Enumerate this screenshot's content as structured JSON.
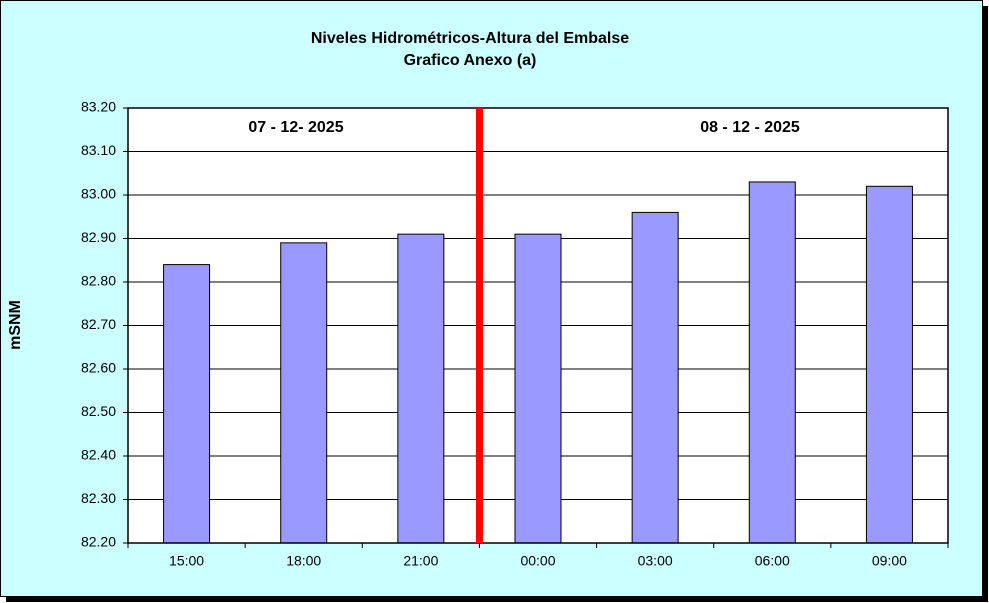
{
  "chart_data": {
    "type": "bar",
    "title": "Niveles Hidrométricos-Altura del Embalse",
    "subtitle": "Grafico Anexo (a)",
    "y_label": "mSNM",
    "annotations": [
      "07 - 12- 2025",
      "08 - 12 - 2025"
    ],
    "categories": [
      "15:00",
      "18:00",
      "21:00",
      "00:00",
      "03:00",
      "06:00",
      "09:00"
    ],
    "values": [
      82.84,
      82.89,
      82.91,
      82.91,
      82.96,
      83.03,
      83.02
    ],
    "color": "#9999ff",
    "ylim": [
      82.2,
      83.2
    ],
    "yticks": [
      {
        "value": 82.2,
        "label": "82.20"
      },
      {
        "value": 82.3,
        "label": "82.30"
      },
      {
        "value": 82.4,
        "label": "82.40"
      },
      {
        "value": 82.5,
        "label": "82.50"
      },
      {
        "value": 82.6,
        "label": "82.60"
      },
      {
        "value": 82.7,
        "label": "82.70"
      },
      {
        "value": 82.8,
        "label": "82.80"
      },
      {
        "value": 82.9,
        "label": "82.90"
      },
      {
        "value": 83.0,
        "label": "83.00"
      },
      {
        "value": 83.1,
        "label": "83.10"
      },
      {
        "value": 83.2,
        "label": "83.20"
      }
    ],
    "grid": true
  }
}
